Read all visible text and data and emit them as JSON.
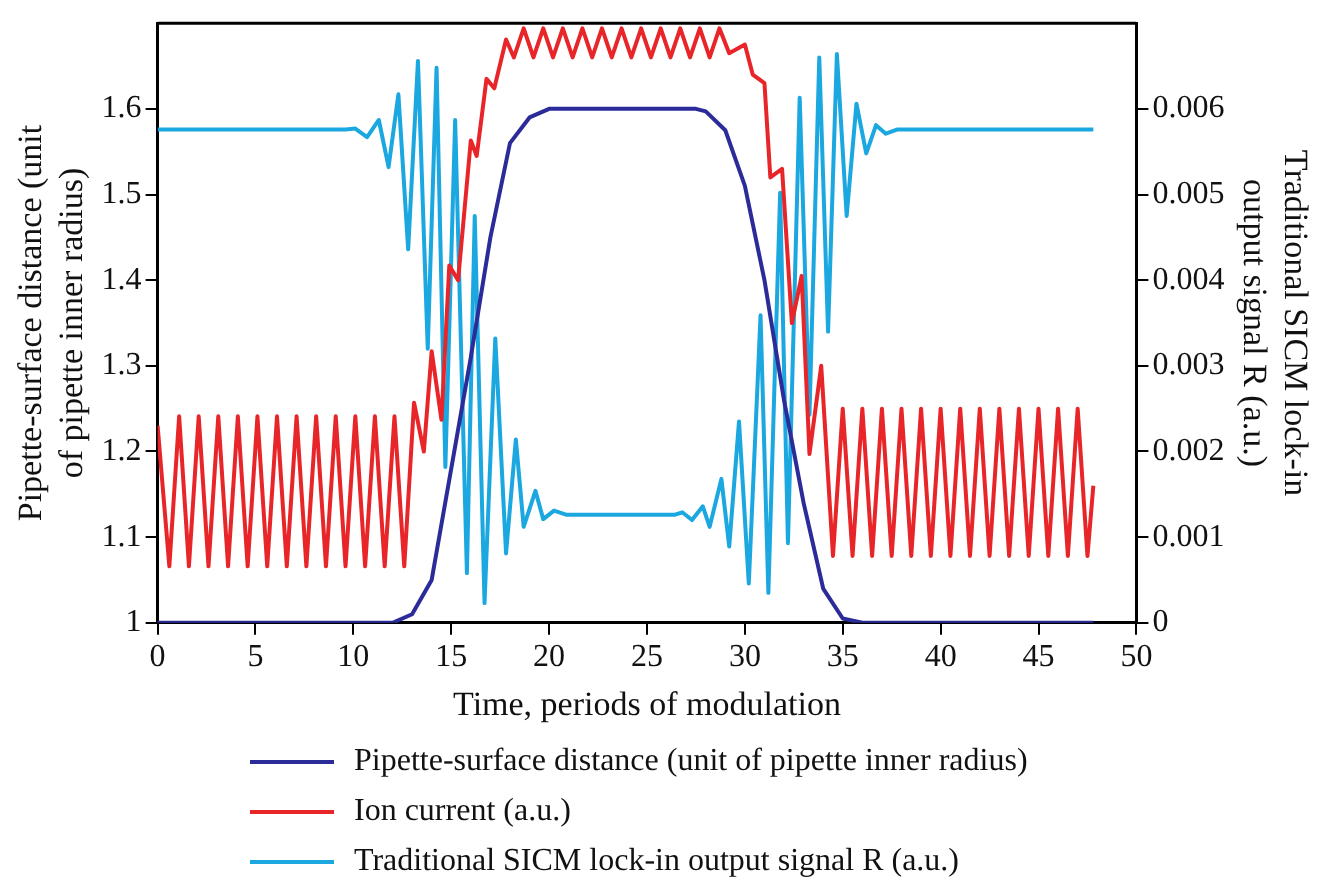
{
  "chart_data": {
    "type": "line",
    "xlabel": "Time, periods of modulation",
    "ylabel": "Pipette-surface distance (unit of pipette inner radius)",
    "y2label": "Traditional SICM lock-in output signal R (a.u.)",
    "xlim": [
      0,
      50
    ],
    "xticks": [
      0,
      5,
      10,
      15,
      20,
      25,
      30,
      35,
      40,
      45,
      50
    ],
    "ylim": [
      1,
      1.7
    ],
    "yticks": [
      1,
      1.1,
      1.2,
      1.3,
      1.4,
      1.5,
      1.6
    ],
    "y2lim": [
      0,
      0.007
    ],
    "y2ticks": [
      0,
      0.001,
      0.002,
      0.003,
      0.004,
      0.005,
      0.006
    ],
    "grid": false,
    "legend": "bottom",
    "marker": "none",
    "line_style": "solid",
    "series": [
      {
        "name": "Pipette-surface distance (unit of pipette inner radius)",
        "color": "#2b2b9a",
        "x": [
          0,
          12,
          13,
          14,
          15,
          16,
          17,
          18,
          19,
          20,
          27.5,
          28,
          29,
          30,
          31,
          32,
          33,
          34,
          35,
          36,
          47.8
        ],
        "values": [
          1,
          1,
          1.01,
          1.05,
          1.18,
          1.31,
          1.45,
          1.56,
          1.59,
          1.6,
          1.6,
          1.597,
          1.575,
          1.51,
          1.4,
          1.26,
          1.14,
          1.04,
          1.005,
          1,
          1
        ]
      },
      {
        "name": "Ion current (a.u.)",
        "color": "#e8262a",
        "x": [
          0,
          0.6,
          1.1,
          1.6,
          2.1,
          2.6,
          3.1,
          3.6,
          4.1,
          4.6,
          5.1,
          5.6,
          6.1,
          6.6,
          7.1,
          7.6,
          8.1,
          8.6,
          9.1,
          9.6,
          10.1,
          10.6,
          11.1,
          11.6,
          12.1,
          12.6,
          13.1,
          13.6,
          14.0,
          14.5,
          14.9,
          15.35,
          16.0,
          16.3,
          16.8,
          17.2,
          17.8,
          18.2,
          18.7,
          19.2,
          19.7,
          20.2,
          20.7,
          21.2,
          21.7,
          22.2,
          22.7,
          23.2,
          23.7,
          24.2,
          24.7,
          25.2,
          25.7,
          26.2,
          26.7,
          27.2,
          27.7,
          28.2,
          28.7,
          29.2,
          30.0,
          30.4,
          31.0,
          31.3,
          31.9,
          32.4,
          32.9,
          33.3,
          33.9,
          34.5,
          35,
          35.5,
          36,
          36.5,
          37,
          37.5,
          38,
          38.5,
          39,
          39.5,
          40,
          40.5,
          41,
          41.5,
          42,
          42.5,
          43,
          43.5,
          44,
          44.5,
          45,
          45.5,
          46,
          46.5,
          47,
          47.5,
          47.8
        ],
        "values": [
          1.23,
          1.066,
          1.241,
          1.066,
          1.241,
          1.066,
          1.241,
          1.066,
          1.241,
          1.066,
          1.241,
          1.066,
          1.241,
          1.066,
          1.241,
          1.066,
          1.241,
          1.066,
          1.241,
          1.066,
          1.241,
          1.066,
          1.241,
          1.066,
          1.241,
          1.066,
          1.257,
          1.2,
          1.317,
          1.237,
          1.417,
          1.4,
          1.563,
          1.545,
          1.635,
          1.624,
          1.681,
          1.66,
          1.694,
          1.66,
          1.694,
          1.66,
          1.694,
          1.66,
          1.694,
          1.66,
          1.694,
          1.66,
          1.694,
          1.66,
          1.694,
          1.66,
          1.694,
          1.66,
          1.694,
          1.66,
          1.694,
          1.66,
          1.694,
          1.665,
          1.675,
          1.64,
          1.63,
          1.52,
          1.53,
          1.35,
          1.405,
          1.197,
          1.3,
          1.078,
          1.25,
          1.078,
          1.25,
          1.078,
          1.25,
          1.078,
          1.25,
          1.078,
          1.25,
          1.078,
          1.25,
          1.078,
          1.25,
          1.078,
          1.25,
          1.078,
          1.25,
          1.078,
          1.25,
          1.078,
          1.25,
          1.078,
          1.25,
          1.078,
          1.25,
          1.078,
          1.16
        ]
      },
      {
        "name": "Traditional SICM lock-in output signal R (a.u.)",
        "color": "#1ba7e0",
        "axis": "y2",
        "x": [
          0,
          9.6,
          10.1,
          10.7,
          11.3,
          11.8,
          12.3,
          12.8,
          13.3,
          13.8,
          14.25,
          14.7,
          15.2,
          15.8,
          16.2,
          16.7,
          17.25,
          17.8,
          18.3,
          18.7,
          19.3,
          19.7,
          20.25,
          20.9,
          26.4,
          26.8,
          27.3,
          27.85,
          28.2,
          28.8,
          29.2,
          29.7,
          30.2,
          30.8,
          31.2,
          31.8,
          32.2,
          32.8,
          33.3,
          33.8,
          34.25,
          34.7,
          35.2,
          35.7,
          36.2,
          36.7,
          37.2,
          37.8,
          47.8
        ],
        "values": [
          0.00576,
          0.00576,
          0.00577,
          0.00567,
          0.00587,
          0.00532,
          0.00617,
          0.00436,
          0.00656,
          0.0032,
          0.00648,
          0.00182,
          0.00587,
          0.00058,
          0.00475,
          0.00023,
          0.00332,
          0.00081,
          0.00214,
          0.00112,
          0.00154,
          0.00121,
          0.00131,
          0.00126,
          0.00126,
          0.00129,
          0.0012,
          0.00136,
          0.00112,
          0.00168,
          0.00089,
          0.00235,
          0.00046,
          0.00359,
          0.00035,
          0.00502,
          0.00093,
          0.00613,
          0.00243,
          0.0066,
          0.0034,
          0.00664,
          0.00475,
          0.00606,
          0.00548,
          0.00581,
          0.00571,
          0.00576,
          0.00576
        ]
      }
    ]
  }
}
